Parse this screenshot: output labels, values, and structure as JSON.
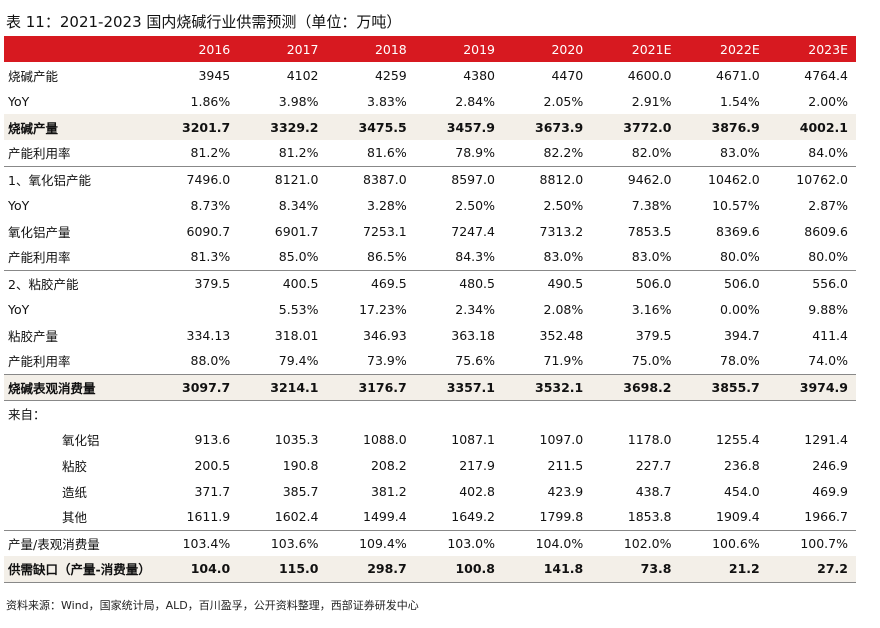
{
  "title": "表 11：2021-2023 国内烧碱行业供需预测（单位：万吨）",
  "years": [
    "2016",
    "2017",
    "2018",
    "2019",
    "2020",
    "2021E",
    "2022E",
    "2023E"
  ],
  "rows": [
    {
      "label": "烧碱产能",
      "values": [
        "3945",
        "4102",
        "4259",
        "4380",
        "4470",
        "4600.0",
        "4671.0",
        "4764.4"
      ]
    },
    {
      "label": "YoY",
      "values": [
        "1.86%",
        "3.98%",
        "3.83%",
        "2.84%",
        "2.05%",
        "2.91%",
        "1.54%",
        "2.00%"
      ]
    },
    {
      "label": "烧碱产量",
      "values": [
        "3201.7",
        "3329.2",
        "3475.5",
        "3457.9",
        "3673.9",
        "3772.0",
        "3876.9",
        "4002.1"
      ]
    },
    {
      "label": "产能利用率",
      "values": [
        "81.2%",
        "81.2%",
        "81.6%",
        "78.9%",
        "82.2%",
        "82.0%",
        "83.0%",
        "84.0%"
      ]
    },
    {
      "label": "1、氧化铝产能",
      "values": [
        "7496.0",
        "8121.0",
        "8387.0",
        "8597.0",
        "8812.0",
        "9462.0",
        "10462.0",
        "10762.0"
      ]
    },
    {
      "label": "YoY",
      "values": [
        "8.73%",
        "8.34%",
        "3.28%",
        "2.50%",
        "2.50%",
        "7.38%",
        "10.57%",
        "2.87%"
      ]
    },
    {
      "label": "氧化铝产量",
      "values": [
        "6090.7",
        "6901.7",
        "7253.1",
        "7247.4",
        "7313.2",
        "7853.5",
        "8369.6",
        "8609.6"
      ]
    },
    {
      "label": "产能利用率",
      "values": [
        "81.3%",
        "85.0%",
        "86.5%",
        "84.3%",
        "83.0%",
        "83.0%",
        "80.0%",
        "80.0%"
      ]
    },
    {
      "label": "2、粘胶产能",
      "values": [
        "379.5",
        "400.5",
        "469.5",
        "480.5",
        "490.5",
        "506.0",
        "506.0",
        "556.0"
      ]
    },
    {
      "label": "YoY",
      "values": [
        "",
        "5.53%",
        "17.23%",
        "2.34%",
        "2.08%",
        "3.16%",
        "0.00%",
        "9.88%"
      ]
    },
    {
      "label": "粘胶产量",
      "values": [
        "334.13",
        "318.01",
        "346.93",
        "363.18",
        "352.48",
        "379.5",
        "394.7",
        "411.4"
      ]
    },
    {
      "label": "产能利用率",
      "values": [
        "88.0%",
        "79.4%",
        "73.9%",
        "75.6%",
        "71.9%",
        "75.0%",
        "78.0%",
        "74.0%"
      ]
    },
    {
      "label": "烧碱表观消费量",
      "values": [
        "3097.7",
        "3214.1",
        "3176.7",
        "3357.1",
        "3532.1",
        "3698.2",
        "3855.7",
        "3974.9"
      ]
    },
    {
      "label": "来自：",
      "values": [
        "",
        "",
        "",
        "",
        "",
        "",
        "",
        ""
      ]
    },
    {
      "label": "氧化铝",
      "values": [
        "913.6",
        "1035.3",
        "1088.0",
        "1087.1",
        "1097.0",
        "1178.0",
        "1255.4",
        "1291.4"
      ]
    },
    {
      "label": "粘胶",
      "values": [
        "200.5",
        "190.8",
        "208.2",
        "217.9",
        "211.5",
        "227.7",
        "236.8",
        "246.9"
      ]
    },
    {
      "label": "造纸",
      "values": [
        "371.7",
        "385.7",
        "381.2",
        "402.8",
        "423.9",
        "438.7",
        "454.0",
        "469.9"
      ]
    },
    {
      "label": "其他",
      "values": [
        "1611.9",
        "1602.4",
        "1499.4",
        "1649.2",
        "1799.8",
        "1853.8",
        "1909.4",
        "1966.7"
      ]
    },
    {
      "label": "产量/表观消费量",
      "values": [
        "103.4%",
        "103.6%",
        "109.4%",
        "103.0%",
        "104.0%",
        "102.0%",
        "100.6%",
        "100.7%"
      ]
    },
    {
      "label": "供需缺口（产量-消费量）",
      "values": [
        "104.0",
        "115.0",
        "298.7",
        "100.8",
        "141.8",
        "73.8",
        "21.2",
        "27.2"
      ]
    }
  ],
  "source": "资料来源：Wind，国家统计局，ALD，百川盈孚，公开资料整理，西部证券研发中心",
  "colors": {
    "header_bg": "#d71920",
    "highlight_bg": "#f3efe8"
  }
}
